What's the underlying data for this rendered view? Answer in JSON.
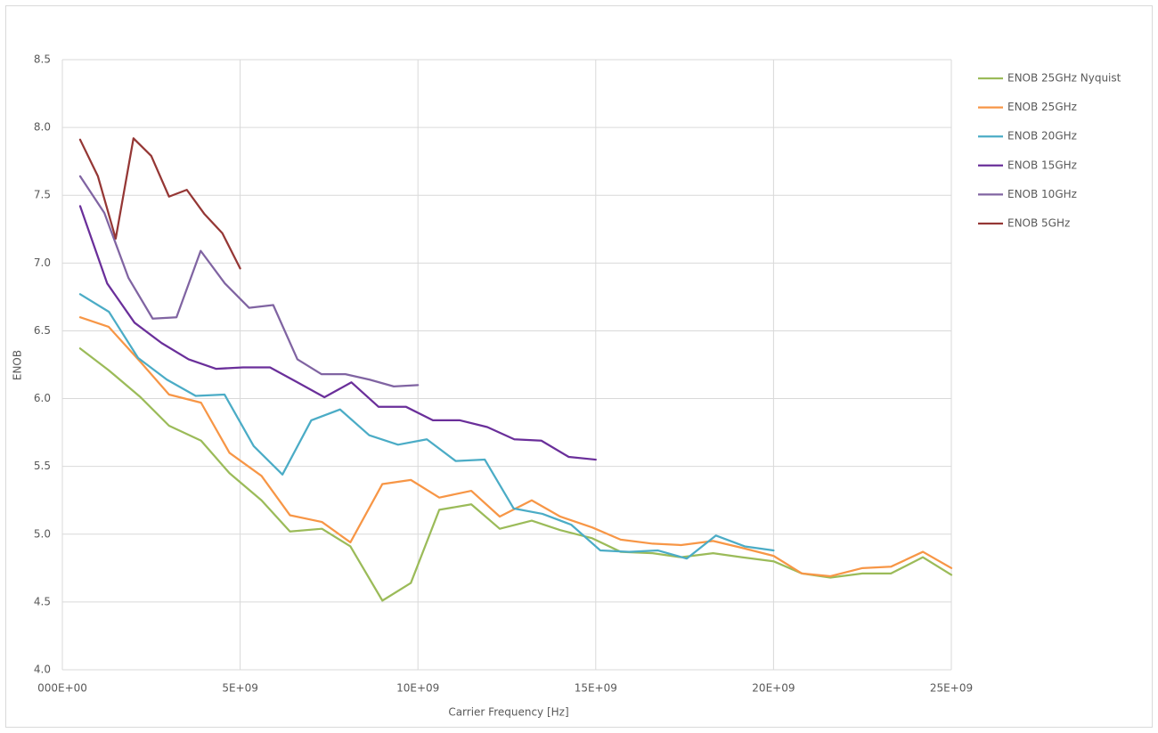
{
  "chart_data": {
    "type": "line",
    "x_label": "Carrier Frequency [Hz]",
    "y_label": "ENOB",
    "xlim": [
      0,
      25000000000.0
    ],
    "ylim": [
      4.0,
      8.5
    ],
    "xticks": [
      {
        "value": 0,
        "label": "000E+00"
      },
      {
        "value": 5000000000.0,
        "label": "5E+09"
      },
      {
        "value": 10000000000.0,
        "label": "10E+09"
      },
      {
        "value": 15000000000.0,
        "label": "15E+09"
      },
      {
        "value": 20000000000.0,
        "label": "20E+09"
      },
      {
        "value": 25000000000.0,
        "label": "25E+09"
      }
    ],
    "yticks": [
      {
        "value": 4,
        "label": "4.0"
      },
      4.5,
      {
        "value": 5,
        "label": "5.0"
      },
      5.5,
      {
        "value": 6,
        "label": "6.0"
      },
      6.5,
      {
        "value": 7,
        "label": "7.0"
      },
      7.5,
      {
        "value": 8,
        "label": "8.0"
      },
      8.5
    ],
    "grid": true,
    "legend": "right",
    "series": [
      {
        "name": "ENOB 25GHz Nyquist",
        "color": "#9bbb59",
        "x": [
          500000000.0,
          1300000000.0,
          2200000000.0,
          3000000000.0,
          3900000000.0,
          4700000000.0,
          5600000000.0,
          6400000000.0,
          7300000000.0,
          8100000000.0,
          9000000000.0,
          9800000000.0,
          10600000000.0,
          11500000000.0,
          12300000000.0,
          13200000000.0,
          14000000000.0,
          14900000000.0,
          15700000000.0,
          16600000000.0,
          17400000000.0,
          18300000000.0,
          19100000000.0,
          20000000000.0,
          20800000000.0,
          21600000000.0,
          22500000000.0,
          23300000000.0,
          24200000000.0,
          25000000000.0
        ],
        "values": [
          6.37,
          6.21,
          6.01,
          5.8,
          5.69,
          5.45,
          5.25,
          5.02,
          5.04,
          4.91,
          4.51,
          4.64,
          5.18,
          5.22,
          5.04,
          5.1,
          5.03,
          4.97,
          4.87,
          4.86,
          4.83,
          4.86,
          4.83,
          4.8,
          4.71,
          4.68,
          4.71,
          4.71,
          4.83,
          4.7
        ]
      },
      {
        "name": "ENOB 25GHz",
        "color": "#f79646",
        "x": [
          500000000.0,
          1300000000.0,
          2200000000.0,
          3000000000.0,
          3900000000.0,
          4700000000.0,
          5600000000.0,
          6400000000.0,
          7300000000.0,
          8100000000.0,
          9000000000.0,
          9800000000.0,
          10600000000.0,
          11500000000.0,
          12300000000.0,
          13200000000.0,
          14000000000.0,
          14900000000.0,
          15700000000.0,
          16600000000.0,
          17400000000.0,
          18300000000.0,
          19100000000.0,
          20000000000.0,
          20800000000.0,
          21600000000.0,
          22500000000.0,
          23300000000.0,
          24200000000.0,
          25000000000.0
        ],
        "values": [
          6.6,
          6.53,
          6.27,
          6.03,
          5.97,
          5.6,
          5.43,
          5.14,
          5.09,
          4.94,
          5.37,
          5.4,
          5.27,
          5.32,
          5.13,
          5.25,
          5.13,
          5.05,
          4.96,
          4.93,
          4.92,
          4.95,
          4.9,
          4.84,
          4.71,
          4.69,
          4.75,
          4.76,
          4.87,
          4.75
        ]
      },
      {
        "name": "ENOB 20GHz",
        "color": "#4bacc6",
        "x": [
          500000000.0,
          1310000000.0,
          2130000000.0,
          2940000000.0,
          3750000000.0,
          4560000000.0,
          5380000000.0,
          6190000000.0,
          7000000000.0,
          7810000000.0,
          8630000000.0,
          9440000000.0,
          10250000000.0,
          11060000000.0,
          11880000000.0,
          12690000000.0,
          13500000000.0,
          14310000000.0,
          15130000000.0,
          15940000000.0,
          16750000000.0,
          17560000000.0,
          18380000000.0,
          19190000000.0,
          20000000000.0
        ],
        "values": [
          6.77,
          6.64,
          6.3,
          6.14,
          6.02,
          6.03,
          5.65,
          5.44,
          5.84,
          5.92,
          5.73,
          5.66,
          5.7,
          5.54,
          5.55,
          5.19,
          5.15,
          5.07,
          4.88,
          4.87,
          4.88,
          4.82,
          4.99,
          4.91,
          4.88
        ]
      },
      {
        "name": "ENOB 15GHz",
        "color": "#6a2f9a",
        "x": [
          500000000.0,
          1260000000.0,
          2030000000.0,
          2790000000.0,
          3550000000.0,
          4320000000.0,
          5080000000.0,
          5840000000.0,
          6610000000.0,
          7370000000.0,
          8130000000.0,
          8890000000.0,
          9660000000.0,
          10420000000.0,
          11180000000.0,
          11950000000.0,
          12710000000.0,
          13470000000.0,
          14240000000.0,
          15000000000.0
        ],
        "values": [
          7.42,
          6.85,
          6.56,
          6.41,
          6.29,
          6.22,
          6.23,
          6.23,
          6.12,
          6.01,
          6.12,
          5.94,
          5.94,
          5.84,
          5.84,
          5.79,
          5.7,
          5.69,
          5.57,
          5.55
        ]
      },
      {
        "name": "ENOB 10GHz",
        "color": "#8064a2",
        "x": [
          500000000.0,
          1180000000.0,
          1860000000.0,
          2540000000.0,
          3210000000.0,
          3890000000.0,
          4570000000.0,
          5250000000.0,
          5930000000.0,
          6610000000.0,
          7290000000.0,
          7960000000.0,
          8640000000.0,
          9320000000.0,
          10000000000.0
        ],
        "values": [
          7.64,
          7.37,
          6.89,
          6.59,
          6.6,
          7.09,
          6.85,
          6.67,
          6.69,
          6.29,
          6.18,
          6.18,
          6.14,
          6.09,
          6.1
        ]
      },
      {
        "name": "ENOB 5GHz",
        "color": "#953735",
        "x": [
          500000000.0,
          1000000000.0,
          1500000000.0,
          2000000000.0,
          2500000000.0,
          3000000000.0,
          3500000000.0,
          4000000000.0,
          4500000000.0,
          5000000000.0
        ],
        "values": [
          7.91,
          7.64,
          7.18,
          7.92,
          7.79,
          7.49,
          7.54,
          7.36,
          7.22,
          6.96
        ]
      }
    ]
  }
}
